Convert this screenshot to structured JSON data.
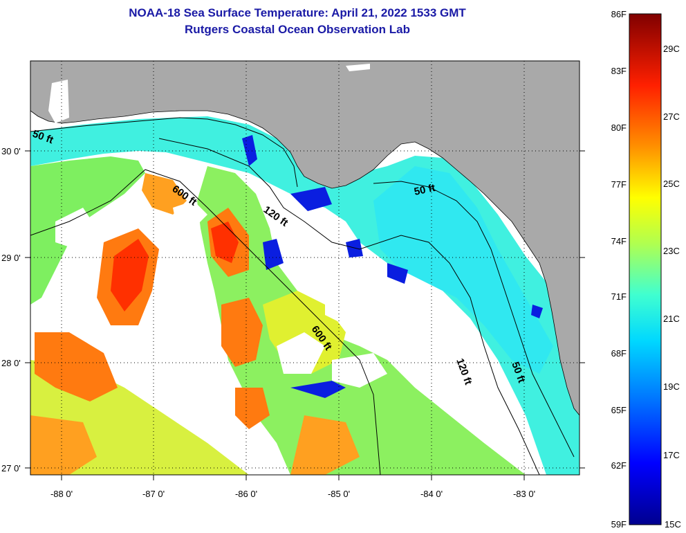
{
  "title": {
    "line1": "NOAA-18 Sea Surface Temperature:  April 21, 2022 1533 GMT",
    "line2": "Rutgers Coastal Ocean Observation Lab"
  },
  "axes": {
    "lon_labels": [
      "-88 0'",
      "-87 0'",
      "-86 0'",
      "-85 0'",
      "-84 0'",
      "-83 0'"
    ],
    "lat_labels": [
      "30 0'",
      "29 0'",
      "28 0'",
      "27 0'"
    ]
  },
  "contours": [
    "50 ft",
    "600 ft",
    "120 ft",
    "50 ft",
    "600 ft",
    "120 ft",
    "50 ft"
  ],
  "colorbar": {
    "fahrenheit": [
      "86F",
      "83F",
      "80F",
      "77F",
      "74F",
      "71F",
      "68F",
      "65F",
      "62F",
      "59F"
    ],
    "celsius": [
      "29C",
      "27C",
      "25C",
      "23C",
      "21C",
      "19C",
      "17C",
      "15C"
    ]
  },
  "colors": {
    "land": "#a9a9a9",
    "cloud": "#ffffff",
    "title": "#1a1aa6"
  }
}
